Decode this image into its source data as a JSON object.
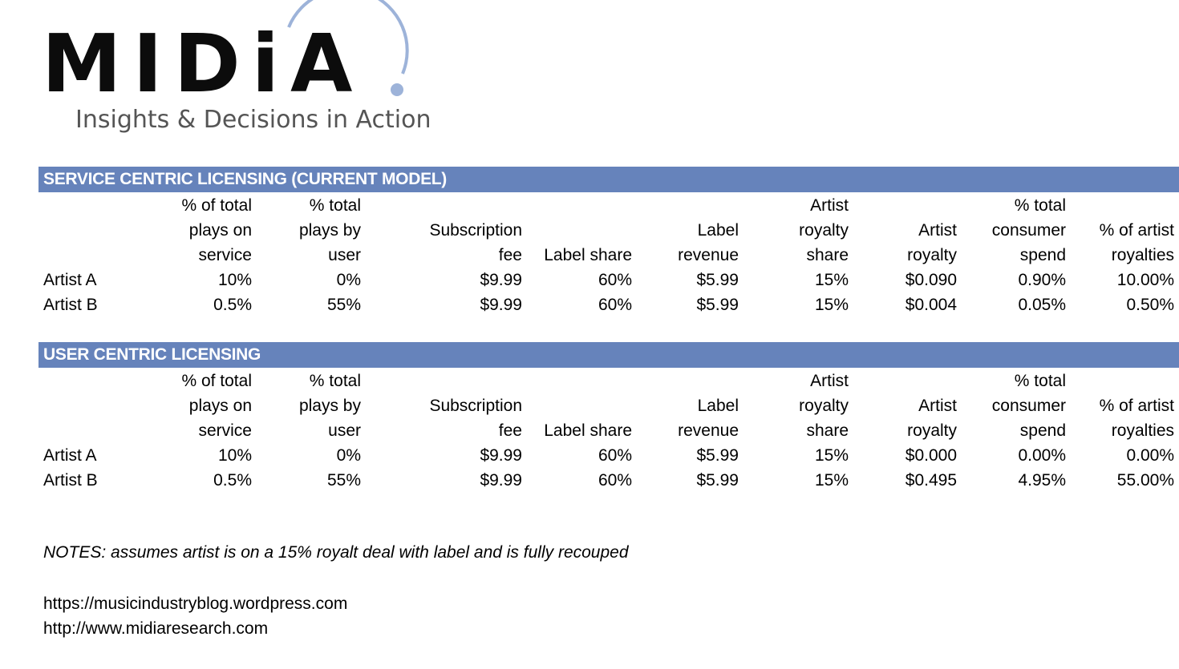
{
  "logo": {
    "wordmark": "MIDiA",
    "tagline": "Insights & Decisions in Action"
  },
  "colors": {
    "section_bar": "#6683bb",
    "logo_accent": "#9db3d9"
  },
  "columns": [
    [
      "% of total",
      "plays on",
      "service"
    ],
    [
      "% total",
      "plays by",
      "user"
    ],
    [
      "",
      "Subscription",
      "fee"
    ],
    [
      "",
      "",
      "Label share"
    ],
    [
      "",
      "Label",
      "revenue"
    ],
    [
      "Artist",
      "royalty",
      "share"
    ],
    [
      "",
      "Artist",
      "royalty"
    ],
    [
      "% total",
      "consumer",
      "spend"
    ],
    [
      "",
      "% of artist",
      "royalties"
    ]
  ],
  "sections": [
    {
      "title": "SERVICE CENTRIC LICENSING (CURRENT MODEL)",
      "rows": [
        {
          "label": "Artist A",
          "values": [
            "10%",
            "0%",
            "$9.99",
            "60%",
            "$5.99",
            "15%",
            "$0.090",
            "0.90%",
            "10.00%"
          ]
        },
        {
          "label": "Artist B",
          "values": [
            "0.5%",
            "55%",
            "$9.99",
            "60%",
            "$5.99",
            "15%",
            "$0.004",
            "0.05%",
            "0.50%"
          ]
        }
      ]
    },
    {
      "title": "USER CENTRIC LICENSING",
      "rows": [
        {
          "label": "Artist A",
          "values": [
            "10%",
            "0%",
            "$9.99",
            "60%",
            "$5.99",
            "15%",
            "$0.000",
            "0.00%",
            "0.00%"
          ]
        },
        {
          "label": "Artist B",
          "values": [
            "0.5%",
            "55%",
            "$9.99",
            "60%",
            "$5.99",
            "15%",
            "$0.495",
            "4.95%",
            "55.00%"
          ]
        }
      ]
    }
  ],
  "notes": "NOTES: assumes artist is on a 15% royalt deal with label and is fully recouped",
  "links": [
    "https://musicindustryblog.wordpress.com",
    "http://www.midiaresearch.com"
  ]
}
